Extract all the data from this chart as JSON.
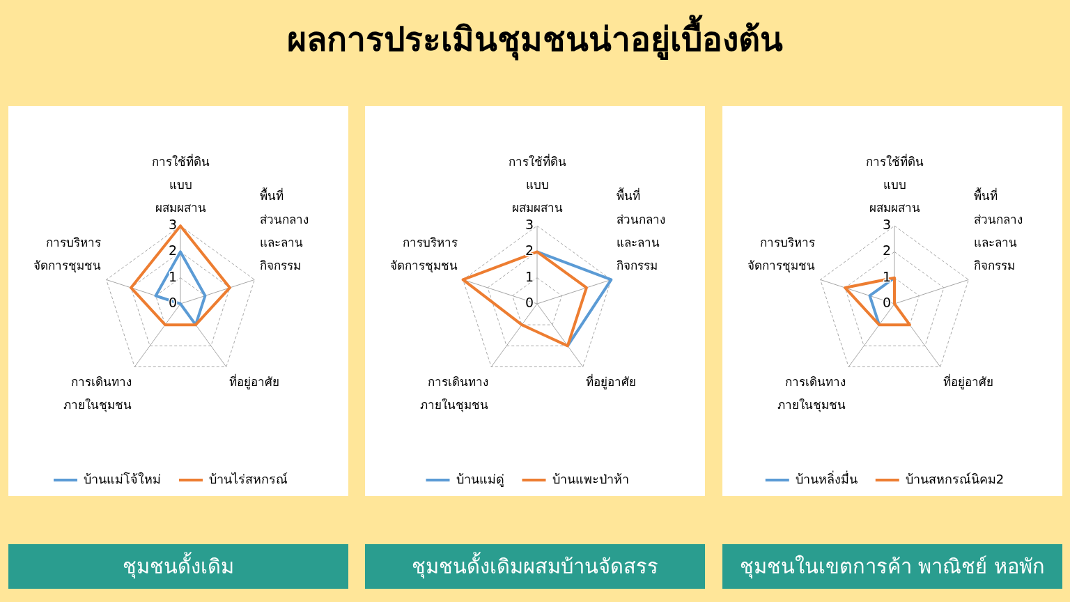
{
  "chart_data": [
    {
      "type": "radar",
      "title": "ผลการประเมินชุมชนน่าอยู่เบื้องต้น",
      "subtitle": "ชุมชนดั้งเดิม",
      "categories": [
        "การใช้ที่ดิน\nแบบ\nผสมผสาน",
        "พื้นที่\nส่วนกลาง\nและลาน\nกิจกรรม",
        "ที่อยู่อาศัย",
        "การเดินทาง\nภายในชุมชน",
        "การบริหาร\nจัดการชุมชน"
      ],
      "series": [
        {
          "name": "บ้านแม่โจ้ใหม่",
          "color": "#5b9bd5",
          "values": [
            2,
            1,
            1,
            0,
            1
          ]
        },
        {
          "name": "บ้านไร่สหกรณ์",
          "color": "#ed7d31",
          "values": [
            3,
            2,
            1,
            1,
            2
          ]
        }
      ],
      "ylim": [
        0,
        3
      ],
      "yticks": [
        0,
        1,
        2,
        3
      ],
      "grid": true,
      "legend": "bottom",
      "marker": "none",
      "line_style": "solid"
    },
    {
      "type": "radar",
      "subtitle": "ชุมชนดั้งเดิมผสมบ้านจัดสรร",
      "categories": [
        "การใช้ที่ดิน\nแบบ\nผสมผสาน",
        "พื้นที่\nส่วนกลาง\nและลาน\nกิจกรรม",
        "ที่อยู่อาศัย",
        "การเดินทาง\nภายในชุมชน",
        "การบริหาร\nจัดการชุมชน"
      ],
      "series": [
        {
          "name": "บ้านแม่ดู่",
          "color": "#5b9bd5",
          "values": [
            2,
            3,
            2,
            null,
            null
          ]
        },
        {
          "name": "บ้านแพะป่าห้า",
          "color": "#ed7d31",
          "values": [
            2,
            2,
            2,
            1,
            3
          ]
        }
      ],
      "ylim": [
        0,
        3
      ],
      "yticks": [
        0,
        1,
        2,
        3
      ],
      "grid": true,
      "legend": "bottom",
      "marker": "none",
      "line_style": "solid"
    },
    {
      "type": "radar",
      "subtitle": "ชุมชนในเขตการค้า พาณิชย์ หอพัก",
      "categories": [
        "การใช้ที่ดิน\nแบบ\nผสมผสาน",
        "พื้นที่\nส่วนกลาง\nและลาน\nกิจกรรม",
        "ที่อยู่อาศัย",
        "การเดินทาง\nภายในชุมชน",
        "การบริหาร\nจัดการชุมชน"
      ],
      "series": [
        {
          "name": "บ้านหลิ่งมื่น",
          "color": "#5b9bd5",
          "values": [
            1,
            null,
            null,
            1,
            1
          ]
        },
        {
          "name": "บ้านสหกรณ์นิคม2",
          "color": "#ed7d31",
          "values": [
            1,
            0,
            1,
            1,
            2
          ]
        }
      ],
      "ylim": [
        0,
        3
      ],
      "yticks": [
        0,
        1,
        2,
        3
      ],
      "grid": true,
      "legend": "bottom",
      "marker": "none",
      "line_style": "solid"
    }
  ]
}
